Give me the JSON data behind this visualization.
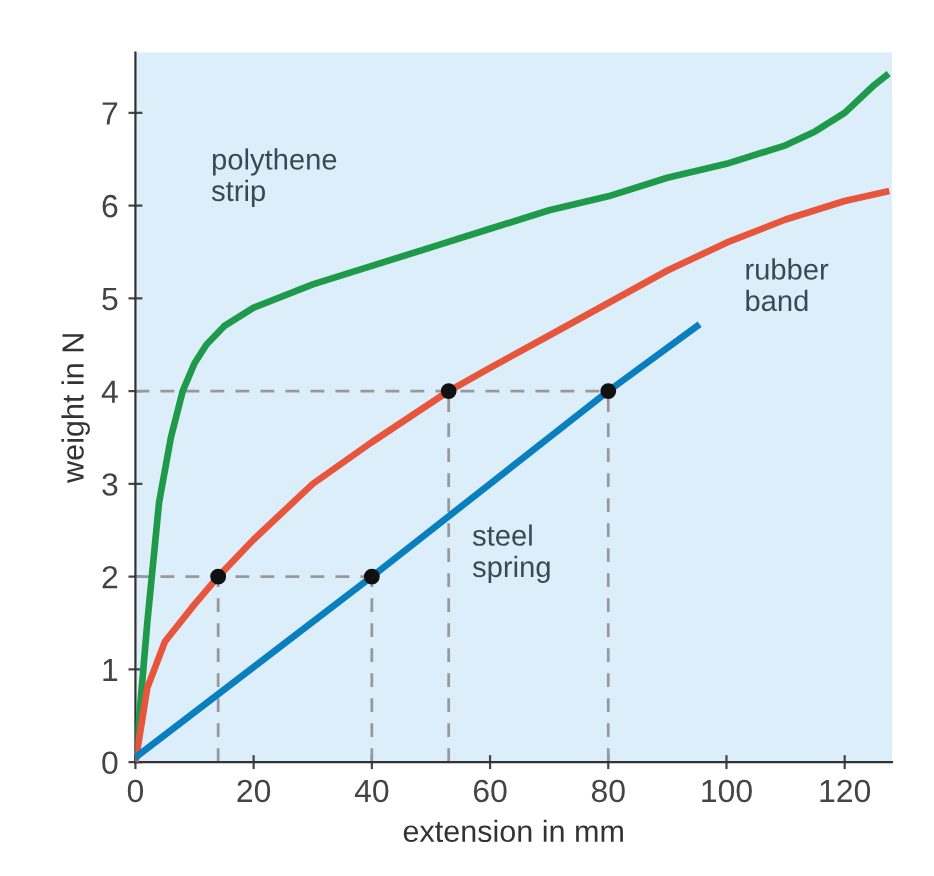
{
  "chart_data": {
    "type": "line",
    "xlabel": "extension in mm",
    "ylabel": "weight in N",
    "xlim": [
      0,
      128
    ],
    "ylim": [
      0,
      7.65
    ],
    "xticks": [
      0,
      20,
      40,
      60,
      80,
      100,
      120
    ],
    "yticks": [
      0,
      1,
      2,
      3,
      4,
      5,
      6,
      7
    ],
    "grid": false,
    "legend": false,
    "series": [
      {
        "name": "polythene\nstrip",
        "color": "#1f9a4a",
        "x": [
          0,
          2,
          4,
          6,
          8,
          10,
          12,
          15,
          20,
          30,
          40,
          50,
          60,
          70,
          80,
          90,
          100,
          110,
          115,
          120,
          125,
          127
        ],
        "values": [
          0,
          1.5,
          2.8,
          3.5,
          4.0,
          4.3,
          4.5,
          4.7,
          4.9,
          5.15,
          5.35,
          5.55,
          5.75,
          5.95,
          6.1,
          6.3,
          6.45,
          6.65,
          6.8,
          7.0,
          7.3,
          7.4
        ]
      },
      {
        "name": "rubber\nband",
        "color": "#e8553d",
        "x": [
          0,
          2,
          5,
          10,
          14,
          20,
          30,
          40,
          53,
          60,
          70,
          80,
          90,
          100,
          110,
          120,
          127
        ],
        "values": [
          0,
          0.8,
          1.3,
          1.7,
          2,
          2.4,
          3.0,
          3.45,
          4,
          4.25,
          4.6,
          4.95,
          5.3,
          5.6,
          5.85,
          6.05,
          6.15
        ]
      },
      {
        "name": "steel\nspring",
        "color": "#0a7fc0",
        "x": [
          0,
          40,
          80,
          95
        ],
        "values": [
          0.05,
          2,
          4,
          4.7
        ]
      },
      {
        "color": "#999999",
        "line_style": "dashed",
        "x": [
          0,
          40
        ],
        "values": [
          2,
          2
        ]
      },
      {
        "color": "#999999",
        "line_style": "dashed",
        "x": [
          0,
          80
        ],
        "values": [
          4,
          4
        ]
      },
      {
        "color": "#999999",
        "line_style": "dashed",
        "x": [
          14,
          14
        ],
        "values": [
          0,
          2
        ]
      },
      {
        "color": "#999999",
        "line_style": "dashed",
        "x": [
          40,
          40
        ],
        "values": [
          0,
          2
        ]
      },
      {
        "color": "#999999",
        "line_style": "dashed",
        "x": [
          53,
          53
        ],
        "values": [
          0,
          4
        ]
      },
      {
        "color": "#999999",
        "line_style": "dashed",
        "x": [
          80,
          80
        ],
        "values": [
          0,
          4
        ]
      },
      {
        "type": "scatter",
        "marker": "circle",
        "color": "#111111",
        "x": [
          14,
          40,
          53,
          80
        ],
        "values": [
          2,
          2,
          4,
          4
        ]
      }
    ]
  }
}
